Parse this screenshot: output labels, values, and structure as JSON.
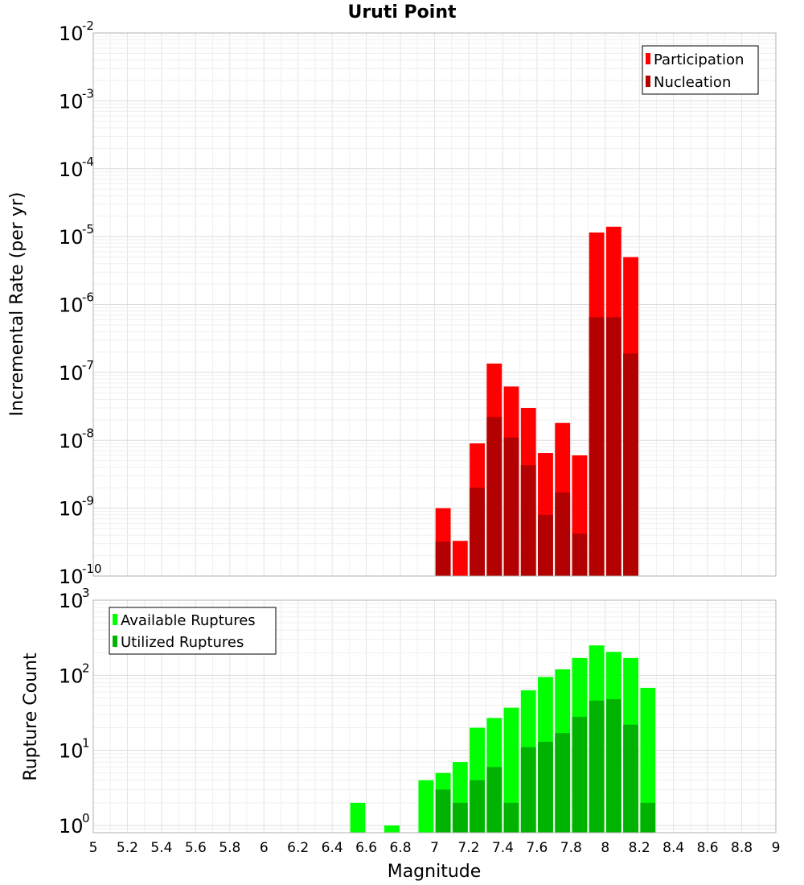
{
  "chart_data": [
    {
      "type": "bar",
      "title": "Uruti Point",
      "xlabel": "Magnitude",
      "ylabel": "Incremental Rate (per yr)",
      "y_scale": "log",
      "ylim": [
        1e-10,
        0.01
      ],
      "xlim": [
        5,
        9
      ],
      "y_ticks": [
        {
          "base": "10",
          "exp": "-2"
        },
        {
          "base": "10",
          "exp": "-3"
        },
        {
          "base": "10",
          "exp": "-4"
        },
        {
          "base": "10",
          "exp": "-5"
        },
        {
          "base": "10",
          "exp": "-6"
        },
        {
          "base": "10",
          "exp": "-7"
        },
        {
          "base": "10",
          "exp": "-8"
        },
        {
          "base": "10",
          "exp": "-9"
        },
        {
          "base": "10",
          "exp": "-10"
        }
      ],
      "legend_position": "top-right",
      "grid": true,
      "series": [
        {
          "name": "Participation",
          "color": "#ff0000",
          "points": [
            {
              "x": 7.05,
              "y": 1e-09
            },
            {
              "x": 7.15,
              "y": 3.3e-10
            },
            {
              "x": 7.25,
              "y": 9e-09
            },
            {
              "x": 7.35,
              "y": 1.35e-07
            },
            {
              "x": 7.45,
              "y": 6.2e-08
            },
            {
              "x": 7.55,
              "y": 3e-08
            },
            {
              "x": 7.65,
              "y": 6.5e-09
            },
            {
              "x": 7.75,
              "y": 1.8e-08
            },
            {
              "x": 7.85,
              "y": 6e-09
            },
            {
              "x": 7.95,
              "y": 1.15e-05
            },
            {
              "x": 8.05,
              "y": 1.4e-05
            },
            {
              "x": 8.15,
              "y": 5e-06
            }
          ]
        },
        {
          "name": "Nucleation",
          "color": "#b30000",
          "points": [
            {
              "x": 7.05,
              "y": 3.2e-10
            },
            {
              "x": 7.25,
              "y": 2e-09
            },
            {
              "x": 7.35,
              "y": 2.2e-08
            },
            {
              "x": 7.45,
              "y": 1.1e-08
            },
            {
              "x": 7.55,
              "y": 4.3e-09
            },
            {
              "x": 7.65,
              "y": 8e-10
            },
            {
              "x": 7.75,
              "y": 1.7e-09
            },
            {
              "x": 7.85,
              "y": 4.2e-10
            },
            {
              "x": 7.95,
              "y": 6.5e-07
            },
            {
              "x": 8.05,
              "y": 6.5e-07
            },
            {
              "x": 8.15,
              "y": 1.9e-07
            }
          ]
        }
      ]
    },
    {
      "type": "bar",
      "title": "",
      "xlabel": "Magnitude",
      "ylabel": "Rupture Count",
      "y_scale": "log",
      "ylim": [
        0.8,
        1000
      ],
      "xlim": [
        5,
        9
      ],
      "x_ticks": [
        "5",
        "5.2",
        "5.4",
        "5.6",
        "5.8",
        "6",
        "6.2",
        "6.4",
        "6.6",
        "6.8",
        "7",
        "7.2",
        "7.4",
        "7.6",
        "7.8",
        "8",
        "8.2",
        "8.4",
        "8.6",
        "8.8",
        "9"
      ],
      "y_ticks": [
        {
          "base": "10",
          "exp": "3"
        },
        {
          "base": "10",
          "exp": "2"
        },
        {
          "base": "10",
          "exp": "1"
        },
        {
          "base": "10",
          "exp": "0"
        }
      ],
      "legend_position": "top-left",
      "grid": true,
      "series": [
        {
          "name": "Available Ruptures",
          "color": "#00ff00",
          "points": [
            {
              "x": 6.55,
              "y": 2
            },
            {
              "x": 6.75,
              "y": 1
            },
            {
              "x": 6.95,
              "y": 4
            },
            {
              "x": 7.05,
              "y": 5
            },
            {
              "x": 7.15,
              "y": 7
            },
            {
              "x": 7.25,
              "y": 20
            },
            {
              "x": 7.35,
              "y": 27
            },
            {
              "x": 7.45,
              "y": 37
            },
            {
              "x": 7.55,
              "y": 63
            },
            {
              "x": 7.65,
              "y": 95
            },
            {
              "x": 7.75,
              "y": 120
            },
            {
              "x": 7.85,
              "y": 170
            },
            {
              "x": 7.95,
              "y": 250
            },
            {
              "x": 8.05,
              "y": 205
            },
            {
              "x": 8.15,
              "y": 170
            },
            {
              "x": 8.25,
              "y": 68
            }
          ]
        },
        {
          "name": "Utilized Ruptures",
          "color": "#00b300",
          "points": [
            {
              "x": 7.05,
              "y": 3
            },
            {
              "x": 7.15,
              "y": 2
            },
            {
              "x": 7.25,
              "y": 4
            },
            {
              "x": 7.35,
              "y": 6
            },
            {
              "x": 7.45,
              "y": 2
            },
            {
              "x": 7.55,
              "y": 11
            },
            {
              "x": 7.65,
              "y": 13
            },
            {
              "x": 7.75,
              "y": 17
            },
            {
              "x": 7.85,
              "y": 28
            },
            {
              "x": 7.95,
              "y": 46
            },
            {
              "x": 8.05,
              "y": 48
            },
            {
              "x": 8.15,
              "y": 22
            },
            {
              "x": 8.25,
              "y": 2
            }
          ]
        }
      ]
    }
  ]
}
